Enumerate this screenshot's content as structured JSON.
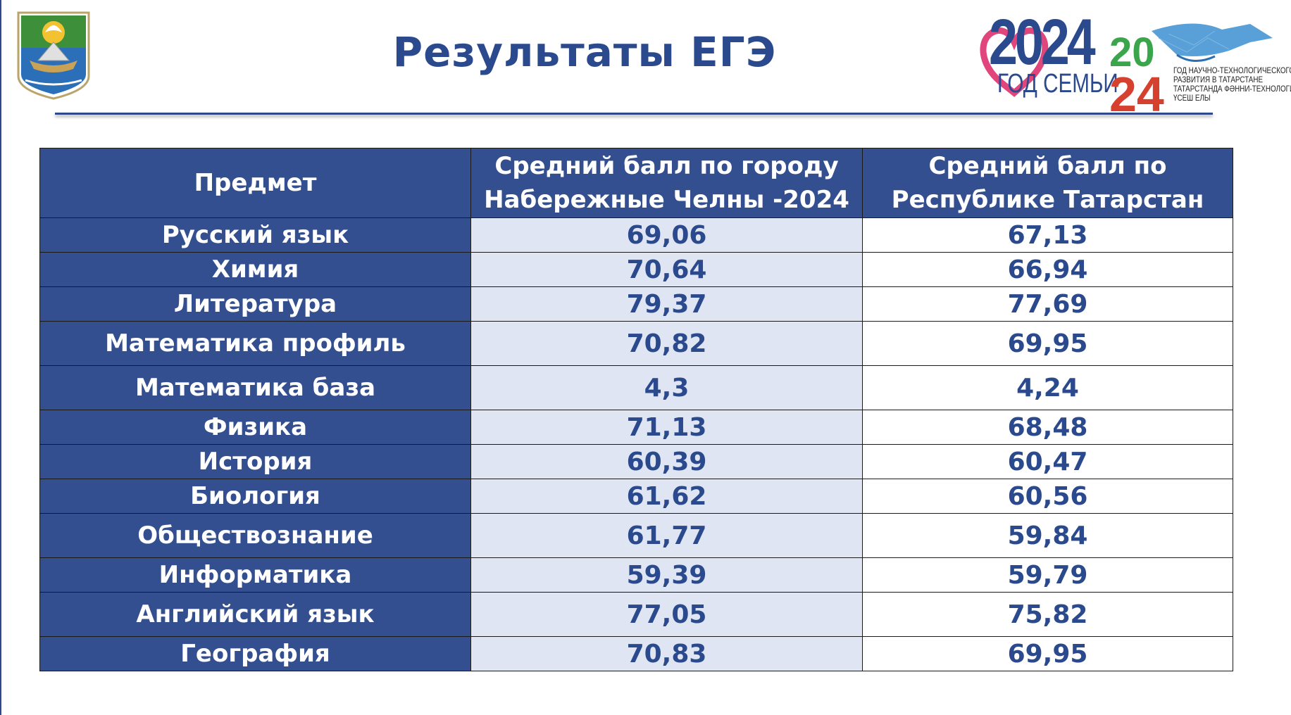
{
  "title": "Результаты ЕГЭ",
  "logos": {
    "family_year": "2024",
    "family_caption": "ГОД СЕМЬИ",
    "science_year_top": "20",
    "science_year_bottom": "24",
    "science_lines": [
      "ГОД НАУЧНО-ТЕХНОЛОГИЧЕСКОГО",
      "РАЗВИТИЯ В ТАТАРСТАНЕ",
      "ТАТАРСТАНДА ФӘННИ-ТЕХНОЛОГИК",
      "ҮСЕШ ЕЛЫ"
    ]
  },
  "table": {
    "headers": [
      "Предмет",
      "Средний балл по городу Набережные Челны -2024",
      "Средний балл по Республике Татарстан"
    ],
    "rows": [
      {
        "subject": "Русский язык",
        "city": "69,06",
        "region": "67,13"
      },
      {
        "subject": "Химия",
        "city": "70,64",
        "region": "66,94"
      },
      {
        "subject": "Литература",
        "city": "79,37",
        "region": "77,69"
      },
      {
        "subject": "Математика профиль",
        "city": "70,82",
        "region": "69,95"
      },
      {
        "subject": "Математика база",
        "city": "4,3",
        "region": "4,24"
      },
      {
        "subject": "Физика",
        "city": "71,13",
        "region": "68,48"
      },
      {
        "subject": "История",
        "city": "60,39",
        "region": "60,47"
      },
      {
        "subject": "Биология",
        "city": "61,62",
        "region": "60,56"
      },
      {
        "subject": "Обществознание",
        "city": "61,77",
        "region": "59,84"
      },
      {
        "subject": "Информатика",
        "city": "59,39",
        "region": "59,79"
      },
      {
        "subject": "Английский язык",
        "city": "77,05",
        "region": "75,82"
      },
      {
        "subject": "География",
        "city": "70,83",
        "region": "69,95"
      }
    ]
  },
  "colors": {
    "header_bg": "#344f8f",
    "city_bg": "#dfe5f2",
    "text_blue": "#2b4a8e",
    "family_heart": "#e0457b",
    "science_green": "#3aa54a",
    "science_red": "#d6402f"
  }
}
